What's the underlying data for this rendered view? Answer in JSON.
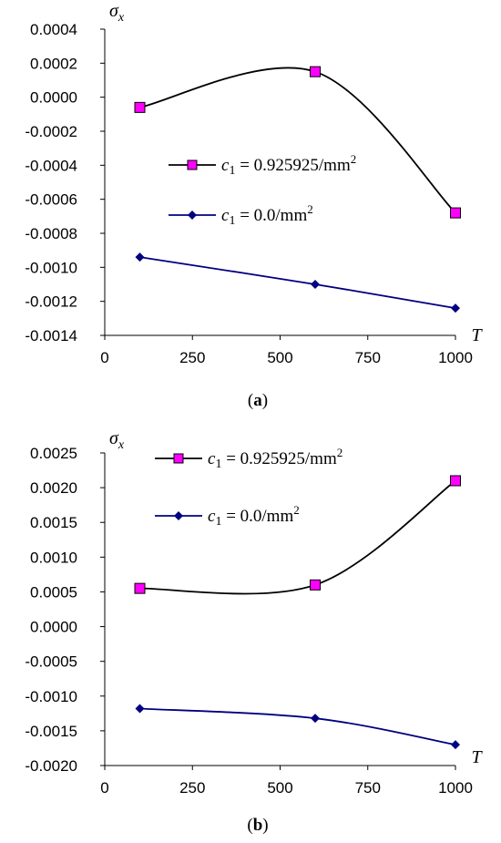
{
  "chart_data": [
    {
      "type": "line",
      "panel_label": "(a)",
      "panel_letter": "a",
      "ylabel_symbol": "σ",
      "ylabel_sub": "x",
      "xlabel": "T",
      "xlim": [
        0,
        1000
      ],
      "ylim": [
        -0.0014,
        0.0004
      ],
      "x_ticks": [
        0,
        250,
        500,
        750,
        1000
      ],
      "y_ticks": [
        0.0004,
        0.0002,
        0.0,
        -0.0002,
        -0.0004,
        -0.0006,
        -0.0008,
        -0.001,
        -0.0012,
        -0.0014
      ],
      "y_tick_labels": [
        "0.0004",
        "0.0002",
        "0.0000",
        "-0.0002",
        "-0.0004",
        "-0.0006",
        "-0.0008",
        "-0.0010",
        "-0.0012",
        "-0.0014"
      ],
      "x_tick_labels": [
        "0",
        "250",
        "500",
        "750",
        "1000"
      ],
      "legend_placement": "center-right",
      "series": [
        {
          "name_prefix": "c",
          "name_sub": "1",
          "name_value": " = 0.925925/mm",
          "name_sup": "2",
          "marker": "square",
          "line_color": "#000000",
          "marker_color": "#ff00ff",
          "x": [
            100,
            600,
            1000
          ],
          "y": [
            -6e-05,
            0.00015,
            -0.00068
          ]
        },
        {
          "name_prefix": "c",
          "name_sub": "1",
          "name_value": " = 0.0/mm",
          "name_sup": "2",
          "marker": "diamond",
          "line_color": "#000080",
          "marker_color": "#000080",
          "x": [
            100,
            600,
            1000
          ],
          "y": [
            -0.00094,
            -0.0011,
            -0.00124
          ]
        }
      ]
    },
    {
      "type": "line",
      "panel_label": "(b)",
      "panel_letter": "b",
      "ylabel_symbol": "σ",
      "ylabel_sub": "x",
      "xlabel": "T",
      "xlim": [
        0,
        1000
      ],
      "ylim": [
        -0.002,
        0.0025
      ],
      "x_ticks": [
        0,
        250,
        500,
        750,
        1000
      ],
      "y_ticks": [
        0.0025,
        0.002,
        0.0015,
        0.001,
        0.0005,
        0.0,
        -0.0005,
        -0.001,
        -0.0015,
        -0.002
      ],
      "y_tick_labels": [
        "0.0025",
        "0.0020",
        "0.0015",
        "0.0010",
        "0.0005",
        "0.0000",
        "-0.0005",
        "-0.0010",
        "-0.0015",
        "-0.0020"
      ],
      "x_tick_labels": [
        "0",
        "250",
        "500",
        "750",
        "1000"
      ],
      "legend_placement": "top-center",
      "series": [
        {
          "name_prefix": "c",
          "name_sub": "1",
          "name_value": " = 0.925925/mm",
          "name_sup": "2",
          "marker": "square",
          "line_color": "#000000",
          "marker_color": "#ff00ff",
          "x": [
            100,
            600,
            1000
          ],
          "y": [
            0.00055,
            0.0006,
            0.0021
          ]
        },
        {
          "name_prefix": "c",
          "name_sub": "1",
          "name_value": " = 0.0/mm",
          "name_sup": "2",
          "marker": "diamond",
          "line_color": "#000080",
          "marker_color": "#000080",
          "x": [
            100,
            600,
            1000
          ],
          "y": [
            -0.00118,
            -0.00132,
            -0.0017
          ]
        }
      ]
    }
  ]
}
